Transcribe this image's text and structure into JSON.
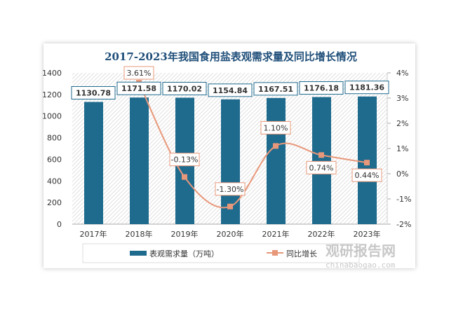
{
  "chart_data": {
    "type": "bar+line",
    "title": "2017-2023年我国食用盐表观需求量及同比增长情况",
    "categories": [
      "2017年",
      "2018年",
      "2019年",
      "2020年",
      "2021年",
      "2022年",
      "2023年"
    ],
    "series": [
      {
        "name": "表观需求量（万吨）",
        "type": "bar",
        "axis": "left",
        "values": [
          1130.78,
          1171.58,
          1170.02,
          1154.84,
          1167.51,
          1176.18,
          1181.36
        ],
        "labels": [
          "1130.78",
          "1171.58",
          "1170.02",
          "1154.84",
          "1167.51",
          "1176.18",
          "1181.36"
        ]
      },
      {
        "name": "同比增长",
        "type": "line",
        "axis": "right",
        "values": [
          null,
          3.61,
          -0.13,
          -1.3,
          1.1,
          0.74,
          0.44
        ],
        "labels": [
          "",
          "3.61%",
          "-0.13%",
          "-1.30%",
          "1.10%",
          "0.74%",
          "0.44%"
        ]
      }
    ],
    "y_left": {
      "range": [
        0,
        1400
      ],
      "ticks": [
        "0",
        "200",
        "400",
        "600",
        "800",
        "1000",
        "1200",
        "1400"
      ]
    },
    "y_right": {
      "range": [
        -2,
        4
      ],
      "ticks": [
        "-2%",
        "-1%",
        "0%",
        "1%",
        "2%",
        "3%",
        "4%"
      ]
    },
    "legend": "bottom",
    "colors": {
      "bar": "#1f6b8e",
      "line": "#e8987a",
      "title": "#1f4e79"
    }
  },
  "watermark": {
    "brand": "观研报告网",
    "url": "chinabaogao.com"
  }
}
